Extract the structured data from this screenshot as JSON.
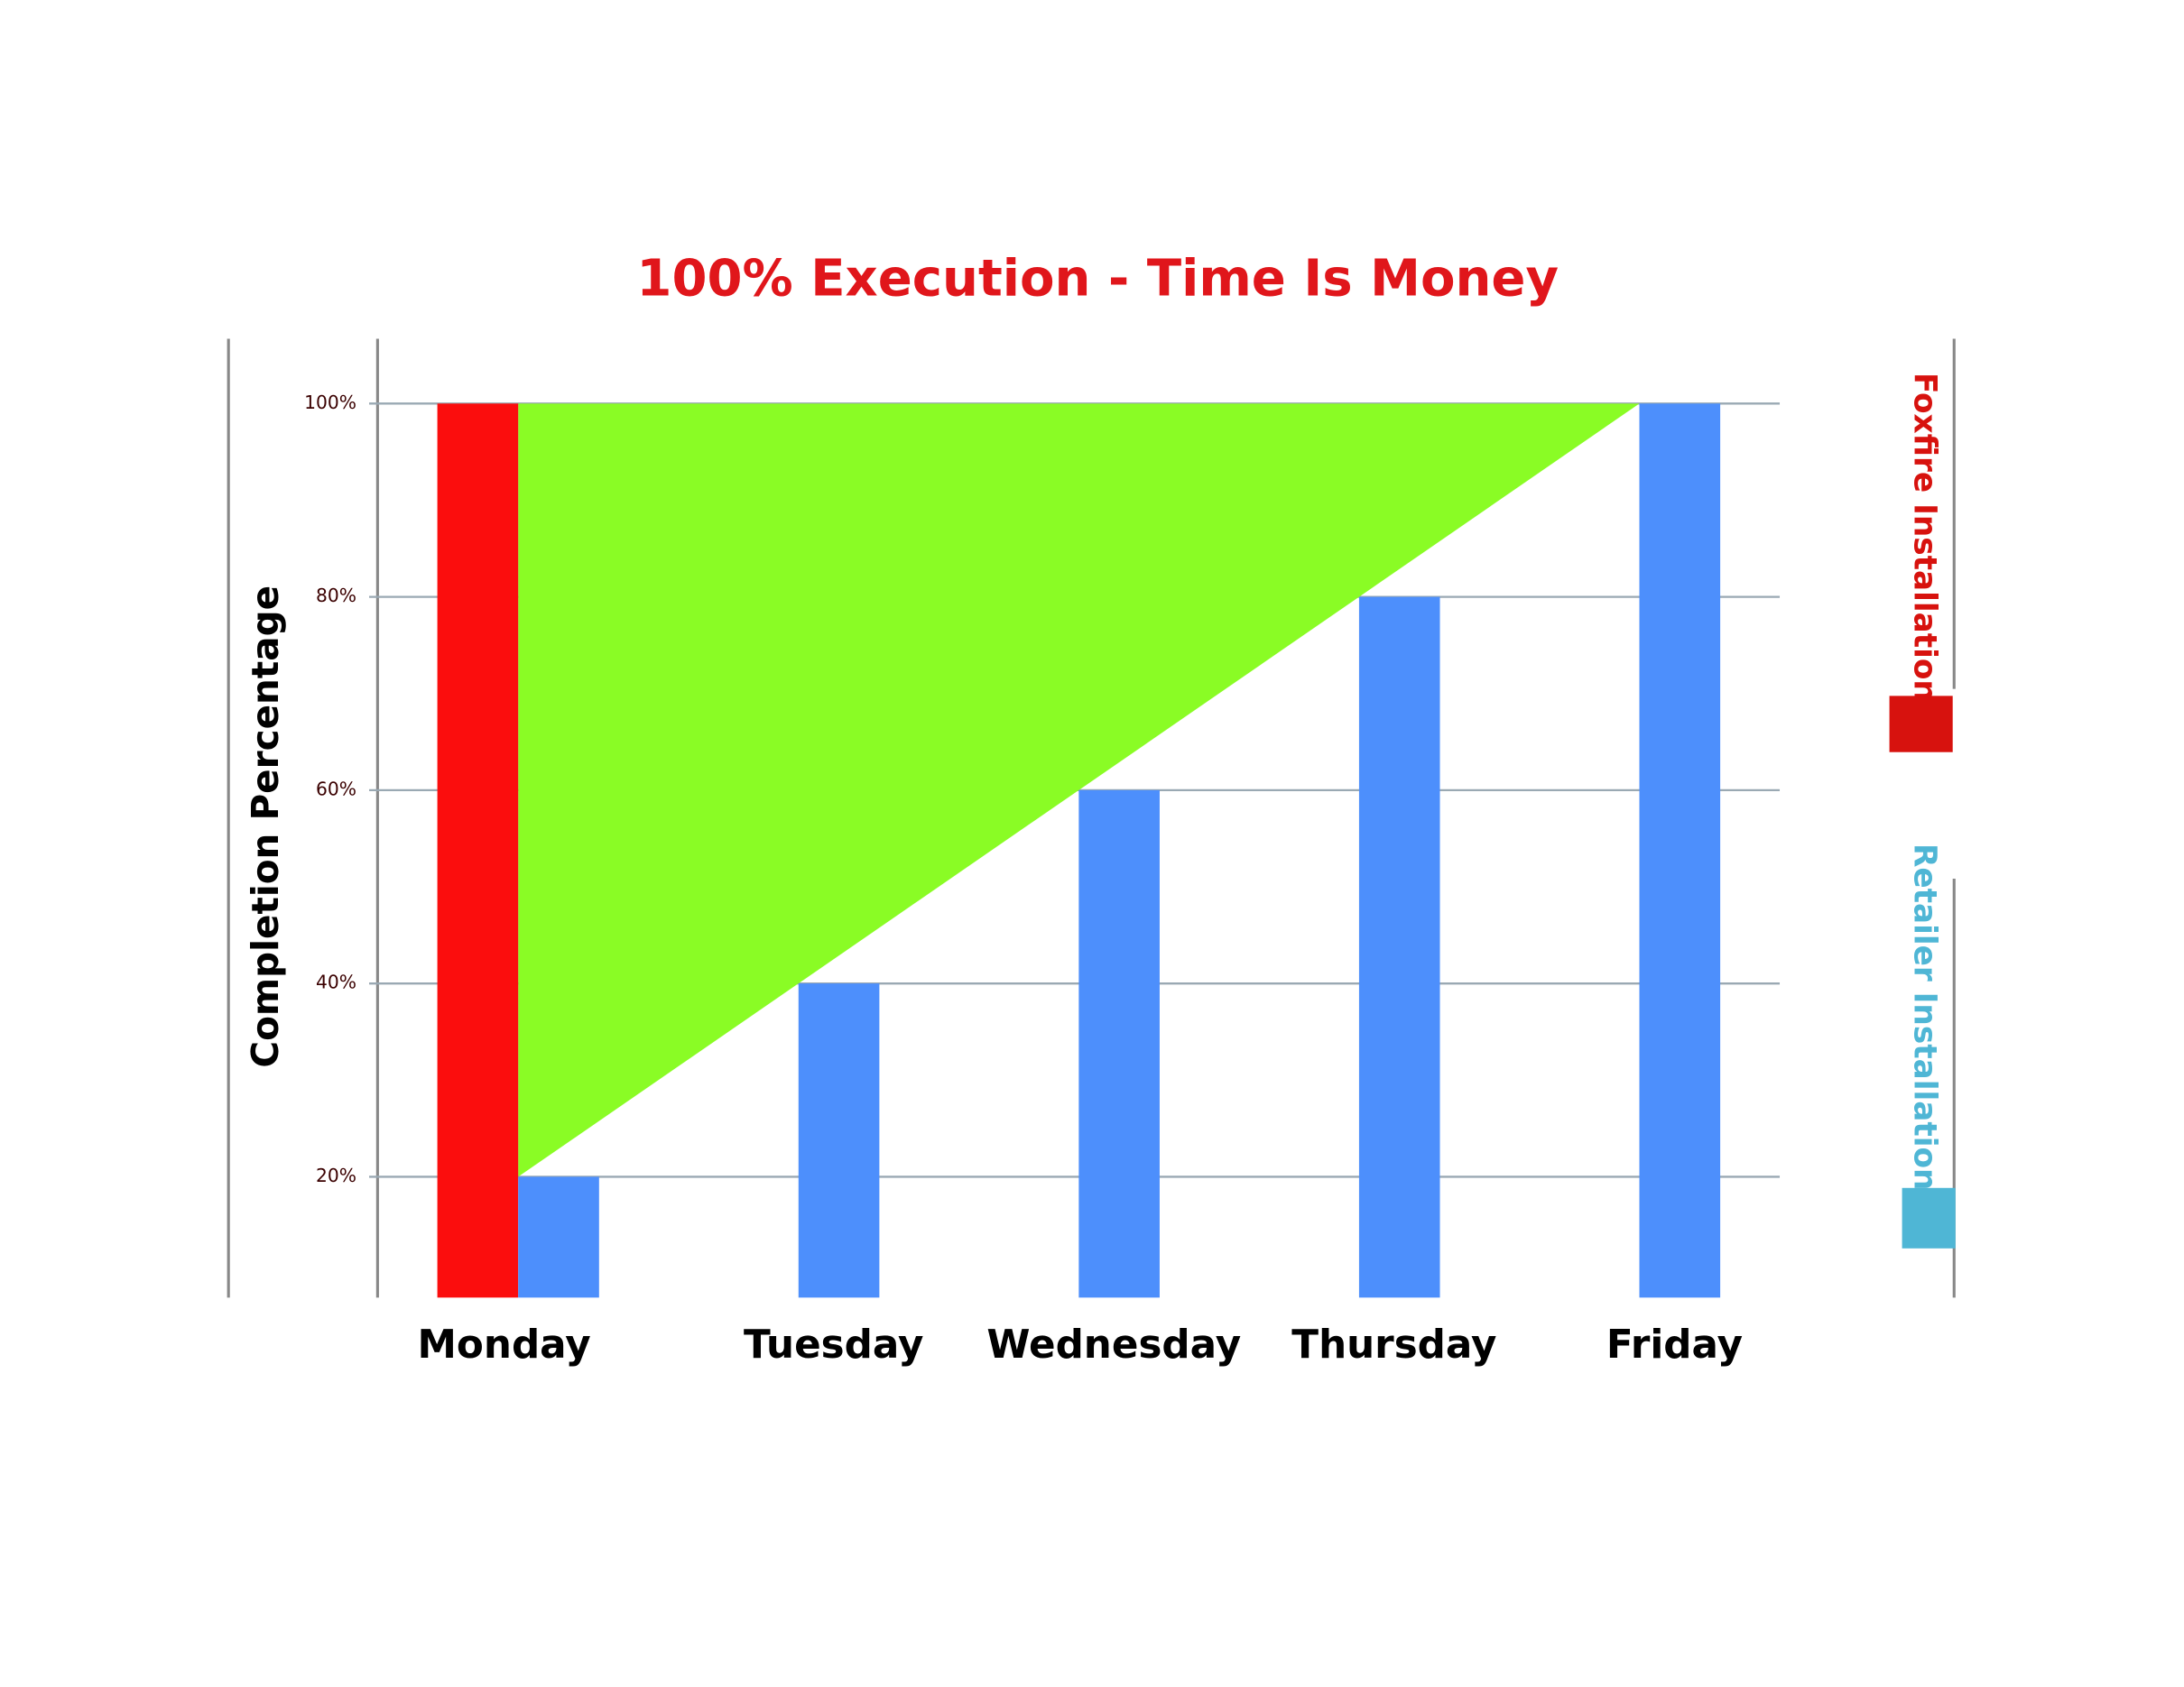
{
  "chart_data": {
    "type": "bar",
    "title": "100% Execution - Time Is Money",
    "y_label": "Completion Percentage",
    "categories": [
      "Monday",
      "Tuesday",
      "Wednesday",
      "Thursday",
      "Friday"
    ],
    "series": [
      {
        "name": "Foxfire Installation",
        "color": "#fb0d0d",
        "legend_color": "#d7120e",
        "values": [
          100,
          null,
          null,
          null,
          null
        ]
      },
      {
        "name": "Retailer Installation",
        "color": "#4d8ffc",
        "legend_color": "#4fb6d5",
        "values": [
          20,
          40,
          60,
          80,
          100
        ]
      }
    ],
    "gap_color": "#8afc25",
    "ylim": [
      7.5,
      106.7
    ],
    "yticks": [
      {
        "value": 20,
        "label": "20%"
      },
      {
        "value": 40,
        "label": "40%"
      },
      {
        "value": 60,
        "label": "60%"
      },
      {
        "value": 80,
        "label": "80%"
      },
      {
        "value": 100,
        "label": "100%"
      }
    ],
    "grid": true
  }
}
